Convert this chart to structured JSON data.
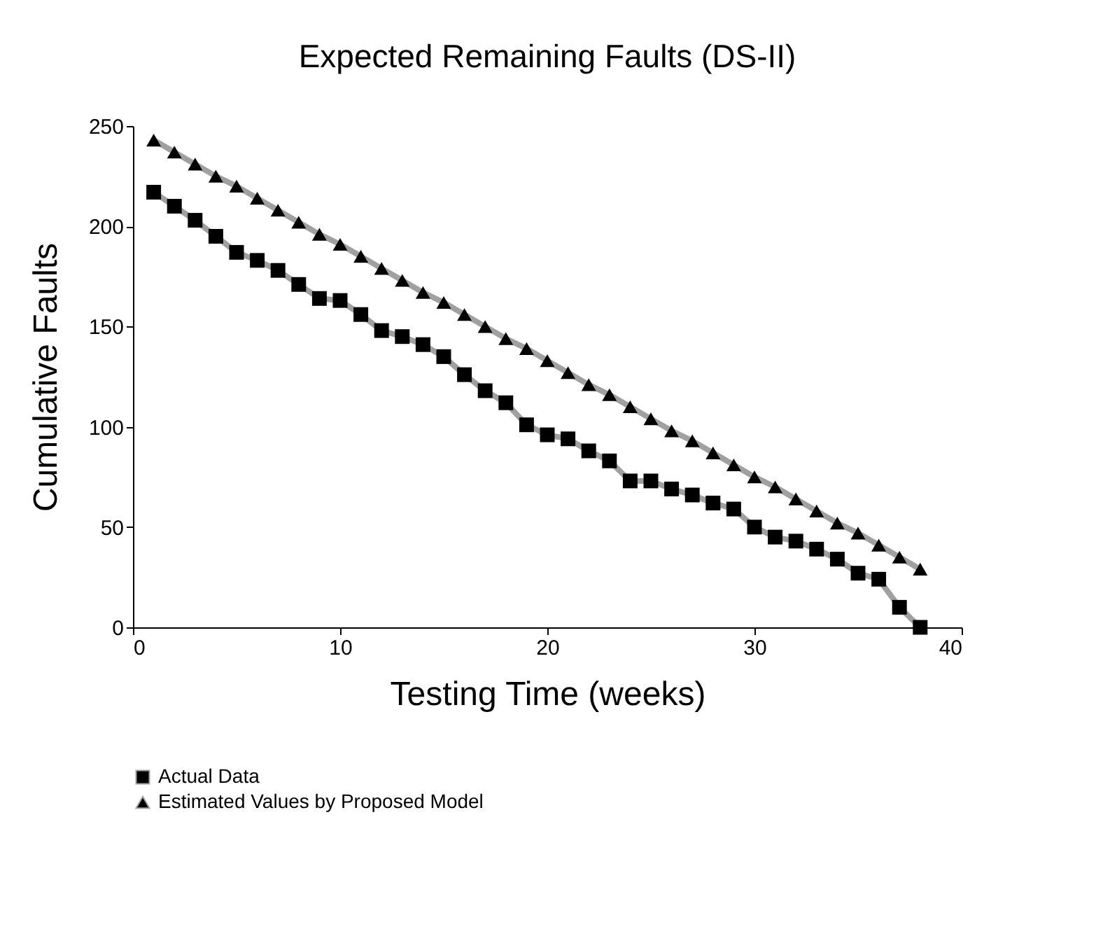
{
  "chart_data": {
    "type": "line",
    "title": "Expected Remaining Faults (DS-II)",
    "xlabel": "Testing Time (weeks)",
    "ylabel": "Cumulative Faults",
    "x": [
      1,
      2,
      3,
      4,
      5,
      6,
      7,
      8,
      9,
      10,
      11,
      12,
      13,
      14,
      15,
      16,
      17,
      18,
      19,
      20,
      21,
      22,
      23,
      24,
      25,
      26,
      27,
      28,
      29,
      30,
      31,
      32,
      33,
      34,
      35,
      36,
      37,
      38
    ],
    "series": [
      {
        "name": "Actual Data",
        "color": "#a0a0a0",
        "marker": "square",
        "values": [
          217,
          210,
          203,
          195,
          187,
          183,
          178,
          171,
          164,
          163,
          156,
          148,
          145,
          141,
          135,
          126,
          118,
          112,
          101,
          96,
          94,
          88,
          83,
          73,
          73,
          69,
          66,
          62,
          59,
          50,
          45,
          43,
          39,
          34,
          27,
          24,
          10,
          0
        ]
      },
      {
        "name": "Estimated Values by Proposed Model",
        "color": "#a0a0a0",
        "marker": "triangle",
        "values": [
          243,
          237,
          231,
          225,
          220,
          214,
          208,
          202,
          196,
          191,
          185,
          179,
          173,
          167,
          162,
          156,
          150,
          144,
          139,
          133,
          127,
          121,
          116,
          110,
          104,
          98,
          93,
          87,
          81,
          75,
          70,
          64,
          58,
          52,
          47,
          41,
          35,
          29
        ]
      }
    ],
    "xlim": [
      0,
      40
    ],
    "xticks": [
      0,
      10,
      20,
      30,
      40
    ],
    "ylim": [
      0,
      250
    ],
    "yticks": [
      0,
      50,
      100,
      150,
      200,
      250
    ],
    "legend": "bottom",
    "grid": false
  }
}
